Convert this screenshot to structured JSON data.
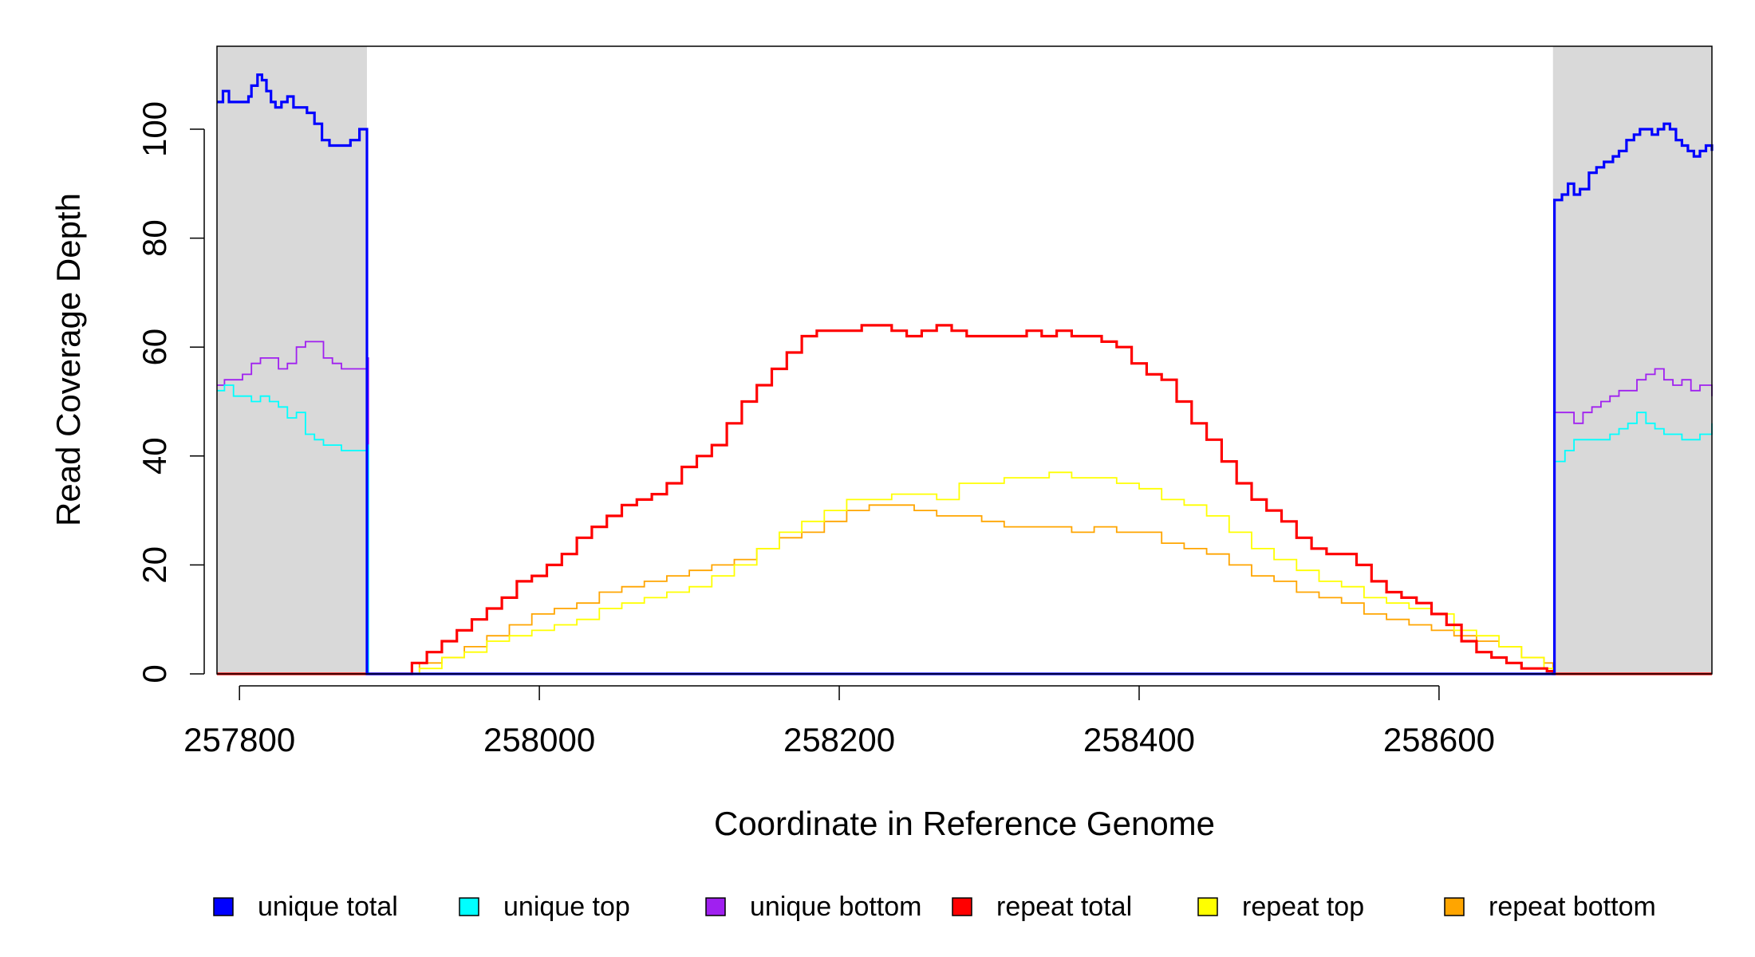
{
  "chart_data": {
    "type": "line",
    "title": "",
    "xlabel": "Coordinate in Reference Genome",
    "ylabel": "Read Coverage Depth",
    "xlim": [
      257785,
      258782
    ],
    "ylim": [
      0,
      115
    ],
    "x_ticks": [
      257800,
      258000,
      258200,
      258400,
      258600
    ],
    "y_ticks": [
      0,
      20,
      40,
      60,
      80,
      100
    ],
    "x_tick_labels": [
      "257800",
      "258000",
      "258200",
      "258400",
      "258600"
    ],
    "y_tick_labels": [
      "0",
      "20",
      "40",
      "60",
      "80",
      "100"
    ],
    "shaded_regions": [
      {
        "from": 257785,
        "to": 257885,
        "color": "#d9d9d9"
      },
      {
        "from": 258676,
        "to": 258782,
        "color": "#d9d9d9"
      }
    ],
    "grid": false,
    "legend_position": "bottom",
    "series": [
      {
        "name": "unique total",
        "color": "#0000ff",
        "x": [
          257785,
          257789,
          257793,
          257796,
          257800,
          257806,
          257808,
          257812,
          257815,
          257818,
          257821,
          257824,
          257828,
          257832,
          257836,
          257840,
          257845,
          257850,
          257855,
          257860,
          257864,
          257868,
          257874,
          257880,
          257884,
          257885,
          257886,
          258676,
          258677,
          258682,
          258686,
          258690,
          258694,
          258700,
          258705,
          258710,
          258716,
          258720,
          258725,
          258730,
          258734,
          258738,
          258742,
          258746,
          258750,
          258754,
          258758,
          258762,
          258766,
          258770,
          258774,
          258778,
          258782
        ],
        "y": [
          105,
          107,
          105,
          105,
          105,
          106,
          108,
          110,
          109,
          107,
          105,
          104,
          105,
          106,
          104,
          104,
          103,
          101,
          98,
          97,
          97,
          97,
          98,
          100,
          100,
          0,
          0,
          0,
          87,
          88,
          90,
          88,
          89,
          92,
          93,
          94,
          95,
          96,
          98,
          99,
          100,
          100,
          99,
          100,
          101,
          100,
          98,
          97,
          96,
          95,
          96,
          97,
          96
        ]
      },
      {
        "name": "unique top",
        "color": "#00ffff",
        "x": [
          257785,
          257790,
          257796,
          257802,
          257808,
          257814,
          257820,
          257826,
          257832,
          257838,
          257844,
          257850,
          257856,
          257862,
          257868,
          257874,
          257880,
          257885,
          257886,
          258676,
          258677,
          258684,
          258690,
          258696,
          258702,
          258708,
          258714,
          258720,
          258726,
          258732,
          258738,
          258744,
          258750,
          258756,
          258762,
          258768,
          258774,
          258782
        ],
        "y": [
          52,
          53,
          51,
          51,
          50,
          51,
          50,
          49,
          47,
          48,
          44,
          43,
          42,
          42,
          41,
          41,
          41,
          42,
          0,
          0,
          39,
          41,
          43,
          43,
          43,
          43,
          44,
          45,
          46,
          48,
          46,
          45,
          44,
          44,
          43,
          43,
          44,
          46
        ]
      },
      {
        "name": "unique bottom",
        "color": "#a020f0",
        "x": [
          257785,
          257790,
          257796,
          257802,
          257808,
          257814,
          257820,
          257826,
          257832,
          257838,
          257844,
          257850,
          257856,
          257862,
          257868,
          257874,
          257880,
          257885,
          257886,
          258676,
          258677,
          258684,
          258690,
          258696,
          258702,
          258708,
          258714,
          258720,
          258726,
          258732,
          258738,
          258744,
          258750,
          258756,
          258762,
          258768,
          258774,
          258782
        ],
        "y": [
          53,
          54,
          54,
          55,
          57,
          58,
          58,
          56,
          57,
          60,
          61,
          61,
          58,
          57,
          56,
          56,
          56,
          58,
          0,
          0,
          48,
          48,
          46,
          48,
          49,
          50,
          51,
          52,
          52,
          54,
          55,
          56,
          54,
          53,
          54,
          52,
          53,
          51
        ]
      },
      {
        "name": "repeat total",
        "color": "#ff0000",
        "x": [
          257785,
          257885,
          257886,
          257908,
          257915,
          257925,
          257935,
          257945,
          257955,
          257965,
          257975,
          257985,
          257995,
          258005,
          258015,
          258025,
          258035,
          258045,
          258055,
          258065,
          258075,
          258085,
          258095,
          258105,
          258115,
          258125,
          258135,
          258145,
          258155,
          258165,
          258175,
          258185,
          258195,
          258205,
          258215,
          258225,
          258235,
          258245,
          258255,
          258265,
          258275,
          258285,
          258295,
          258305,
          258315,
          258325,
          258335,
          258345,
          258355,
          258365,
          258375,
          258385,
          258395,
          258405,
          258415,
          258425,
          258435,
          258445,
          258455,
          258465,
          258475,
          258485,
          258495,
          258505,
          258515,
          258525,
          258535,
          258545,
          258555,
          258565,
          258575,
          258585,
          258595,
          258605,
          258615,
          258625,
          258635,
          258645,
          258655,
          258665,
          258672,
          258676,
          258782
        ],
        "y": [
          0,
          0,
          0,
          0,
          2,
          4,
          6,
          8,
          10,
          12,
          14,
          17,
          18,
          20,
          22,
          25,
          27,
          29,
          31,
          32,
          33,
          35,
          38,
          40,
          42,
          46,
          50,
          53,
          56,
          59,
          62,
          63,
          63,
          63,
          64,
          64,
          63,
          62,
          63,
          64,
          63,
          62,
          62,
          62,
          62,
          63,
          62,
          63,
          62,
          62,
          61,
          60,
          57,
          55,
          54,
          50,
          46,
          43,
          39,
          35,
          32,
          30,
          28,
          25,
          23,
          22,
          22,
          20,
          17,
          15,
          14,
          13,
          11,
          9,
          6,
          4,
          3,
          2,
          1,
          1,
          0.5,
          0,
          0
        ]
      },
      {
        "name": "repeat top",
        "color": "#ffff00",
        "x": [
          257785,
          257885,
          257886,
          257908,
          257920,
          257935,
          257950,
          257965,
          257980,
          257995,
          258010,
          258025,
          258040,
          258055,
          258070,
          258085,
          258100,
          258115,
          258130,
          258145,
          258160,
          258175,
          258190,
          258205,
          258220,
          258235,
          258250,
          258265,
          258280,
          258295,
          258310,
          258325,
          258340,
          258355,
          258370,
          258385,
          258400,
          258415,
          258430,
          258445,
          258460,
          258475,
          258490,
          258505,
          258520,
          258535,
          258550,
          258565,
          258580,
          258595,
          258610,
          258625,
          258640,
          258655,
          258670,
          258676,
          258782
        ],
        "y": [
          0,
          0,
          0,
          0,
          1,
          3,
          4,
          6,
          7,
          8,
          9,
          10,
          12,
          13,
          14,
          15,
          16,
          18,
          20,
          23,
          26,
          28,
          30,
          32,
          32,
          33,
          33,
          32,
          35,
          35,
          36,
          36,
          37,
          36,
          36,
          35,
          34,
          32,
          31,
          29,
          26,
          23,
          21,
          19,
          17,
          16,
          14,
          13,
          12,
          11,
          8,
          7,
          5,
          3,
          1,
          0,
          0
        ]
      },
      {
        "name": "repeat bottom",
        "color": "#ffa500",
        "x": [
          257785,
          257885,
          257886,
          257908,
          257920,
          257935,
          257950,
          257965,
          257980,
          257995,
          258010,
          258025,
          258040,
          258055,
          258070,
          258085,
          258100,
          258115,
          258130,
          258145,
          258160,
          258175,
          258190,
          258205,
          258220,
          258235,
          258250,
          258265,
          258280,
          258295,
          258310,
          258325,
          258340,
          258355,
          258370,
          258385,
          258400,
          258415,
          258430,
          258445,
          258460,
          258475,
          258490,
          258505,
          258520,
          258535,
          258550,
          258565,
          258580,
          258595,
          258610,
          258625,
          258640,
          258655,
          258670,
          258676,
          258782
        ],
        "y": [
          0,
          0,
          0,
          0,
          2,
          3,
          5,
          7,
          9,
          11,
          12,
          13,
          15,
          16,
          17,
          18,
          19,
          20,
          21,
          23,
          25,
          26,
          28,
          30,
          31,
          31,
          30,
          29,
          29,
          28,
          27,
          27,
          27,
          26,
          27,
          26,
          26,
          24,
          23,
          22,
          20,
          18,
          17,
          15,
          14,
          13,
          11,
          10,
          9,
          8,
          7,
          6,
          5,
          3,
          2,
          0,
          0
        ]
      }
    ]
  }
}
